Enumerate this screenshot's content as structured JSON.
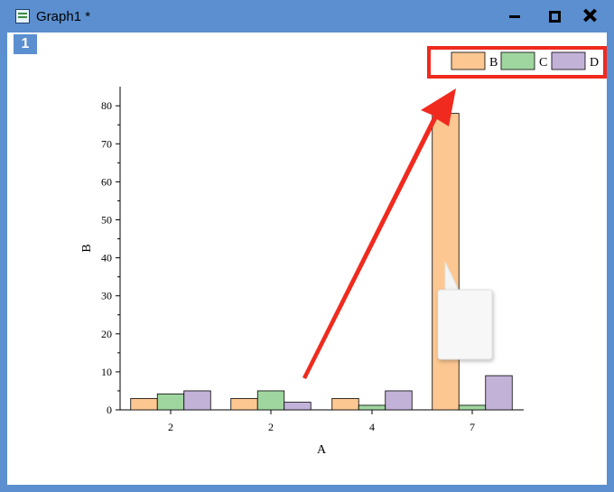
{
  "window": {
    "title": "Graph1 *",
    "layer_badge": "1",
    "icons": [
      "graph-window-icon",
      "minimize-icon",
      "maximize-icon",
      "close-icon"
    ]
  },
  "colors": {
    "frame": "#5b8fd0",
    "series_B": "#fdc792",
    "series_C": "#9fd69f",
    "series_D": "#c3b2d8",
    "annotation": "#f02a1e"
  },
  "chart_data": {
    "type": "bar",
    "categories": [
      "2",
      "2",
      "4",
      "7"
    ],
    "series": [
      {
        "name": "B",
        "values": [
          3,
          3,
          3,
          78
        ]
      },
      {
        "name": "C",
        "values": [
          4.2,
          5,
          1.2,
          1.2
        ]
      },
      {
        "name": "D",
        "values": [
          5,
          2,
          5,
          9
        ]
      }
    ],
    "xlabel": "A",
    "ylabel": "B",
    "ylim": [
      0,
      85
    ],
    "yticks": [
      0,
      10,
      20,
      30,
      40,
      50,
      60,
      70,
      80
    ],
    "legend": "top-right",
    "grid": false
  }
}
